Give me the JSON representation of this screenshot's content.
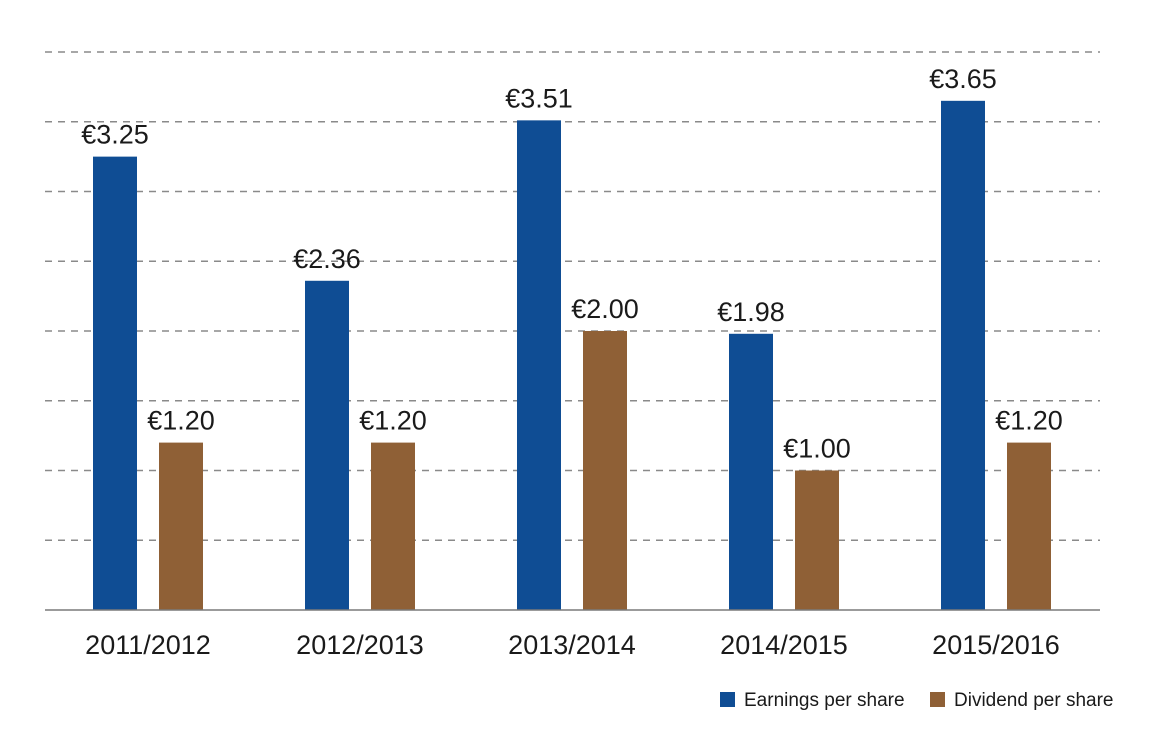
{
  "chart_data": {
    "type": "bar",
    "categories": [
      "2011/2012",
      "2012/2013",
      "2013/2014",
      "2014/2015",
      "2015/2016"
    ],
    "series": [
      {
        "name": "Earnings per share",
        "color": "#0f4d94",
        "values": [
          3.25,
          2.36,
          3.51,
          1.98,
          3.65
        ],
        "labels": [
          "€3.25",
          "€2.36",
          "€3.51",
          "€1.98",
          "€3.65"
        ]
      },
      {
        "name": "Dividend per share",
        "color": "#8f6036",
        "values": [
          1.2,
          1.2,
          2.0,
          1.0,
          1.2
        ],
        "labels": [
          "€1.20",
          "€1.20",
          "€2.00",
          "€1.00",
          "€1.20"
        ]
      }
    ],
    "ylim": [
      0,
      4.0
    ],
    "grid_step": 0.5,
    "grid": true,
    "legend_position": "bottom-right"
  }
}
